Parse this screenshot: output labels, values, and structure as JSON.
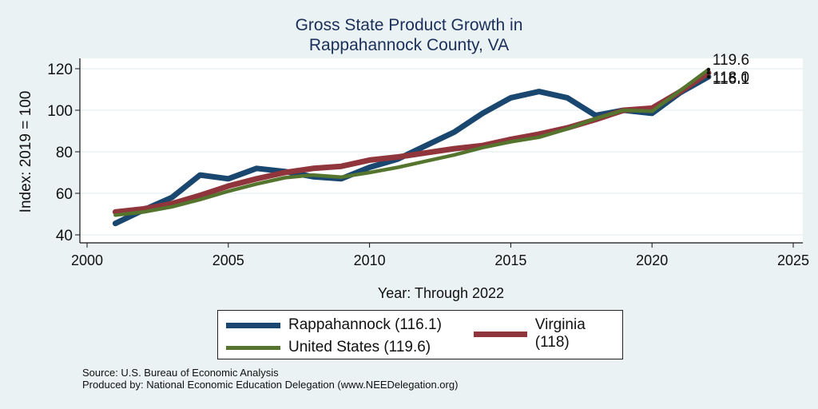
{
  "chart_data": {
    "type": "line",
    "title": [
      "Gross State Product Growth in",
      "Rappahannock County, VA"
    ],
    "xlabel": "Year: Through 2022",
    "ylabel": "Index: 2019 = 100",
    "xlim": [
      2000,
      2025
    ],
    "ylim": [
      40,
      120
    ],
    "xticks": [
      2000,
      2005,
      2010,
      2015,
      2020,
      2025
    ],
    "yticks": [
      40,
      60,
      80,
      100,
      120
    ],
    "grid": true,
    "x": [
      2001,
      2002,
      2003,
      2004,
      2005,
      2006,
      2007,
      2008,
      2009,
      2010,
      2011,
      2012,
      2013,
      2014,
      2015,
      2016,
      2017,
      2018,
      2019,
      2020,
      2021,
      2022
    ],
    "series": [
      {
        "name": "Rappahannock",
        "legend_label": "Rappahannock  (116.1)",
        "color": "#1a476f",
        "values": [
          45.5,
          52,
          58,
          68.8,
          67,
          72,
          70.5,
          68,
          67,
          72.5,
          76.5,
          83,
          89.5,
          98.5,
          106,
          109,
          106,
          97.5,
          100,
          98.5,
          108.5,
          116.1
        ],
        "end_label": "116.1"
      },
      {
        "name": "Virginia",
        "legend_label": "Virginia (118)",
        "color": "#90353b",
        "values": [
          51,
          52.5,
          55,
          59,
          63.5,
          67,
          70,
          72,
          73,
          76,
          77.5,
          79.5,
          81.5,
          83,
          86,
          88.5,
          91.5,
          95.5,
          100,
          101,
          109,
          118
        ],
        "end_label": "118.0"
      },
      {
        "name": "United States",
        "legend_label": "United States (119.6)",
        "color": "#55752f",
        "values": [
          49.5,
          51,
          53.5,
          57,
          61,
          64.5,
          67.5,
          68.8,
          67.8,
          70,
          72.5,
          75.5,
          78.5,
          82,
          84.8,
          87,
          91,
          96,
          100,
          99.5,
          109.5,
          119.6
        ],
        "end_label": "119.6"
      }
    ],
    "legend_position": "bottom"
  },
  "footer": {
    "source": "Source: U.S. Bureau of Economic Analysis",
    "produced_by": "Produced by: National Economic Education Delegation (www.NEEDelegation.org)"
  }
}
